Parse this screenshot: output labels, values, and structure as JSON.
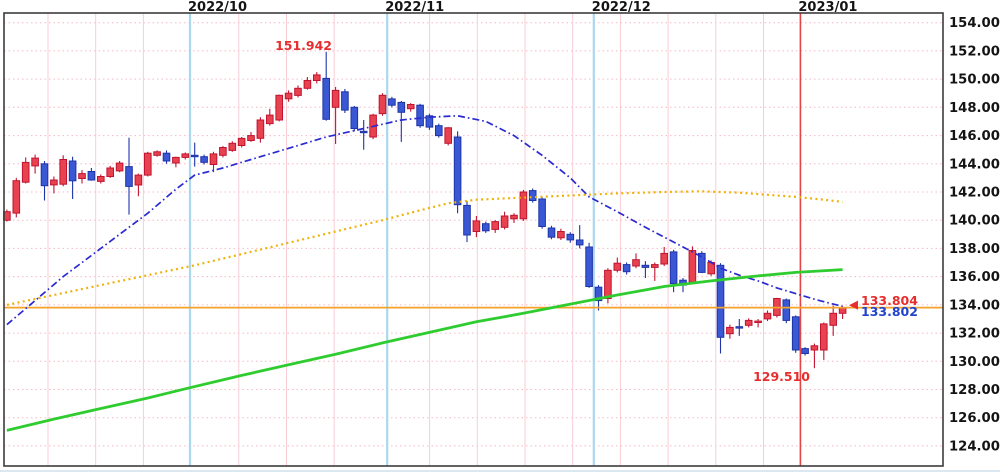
{
  "chart_data": {
    "type": "candlestick",
    "title": "",
    "y_axis": {
      "tick_labels": [
        "154.000",
        "152.000",
        "150.000",
        "148.000",
        "146.000",
        "144.000",
        "142.000",
        "140.000",
        "138.000",
        "136.000",
        "134.000",
        "132.000",
        "130.000",
        "128.000",
        "126.000",
        "124.000"
      ],
      "tick_values": [
        154,
        152,
        150,
        148,
        146,
        144,
        142,
        140,
        138,
        136,
        134,
        132,
        130,
        128,
        126,
        124
      ],
      "visible_range": [
        122.6,
        154.7
      ],
      "side": "right"
    },
    "x_axis": {
      "month_labels": [
        {
          "label": "2022/10",
          "first_candle_index": 20,
          "line_color": "lightblue"
        },
        {
          "label": "2022/11",
          "first_candle_index": 41,
          "line_color": "lightblue"
        },
        {
          "label": "2022/12",
          "first_candle_index": 63,
          "line_color": "lightblue"
        },
        {
          "label": "2023/01",
          "first_candle_index": 85,
          "line_color": "red"
        }
      ],
      "weekly_gridlines": true
    },
    "grid": {
      "horizontal": "pink dotted",
      "vertical_weekly": "pink solid",
      "vertical_monthly": "light blue",
      "current_month_line": "red"
    },
    "up_color": "#e8414f",
    "up_border": "#c01430",
    "down_color": "#3a58d4",
    "down_border": "#1e34a8",
    "candles_ohlc": [
      [
        140.0,
        140.75,
        139.9,
        140.6
      ],
      [
        140.5,
        143.0,
        140.2,
        142.8
      ],
      [
        142.7,
        144.45,
        142.6,
        144.1
      ],
      [
        143.85,
        144.65,
        143.3,
        144.4
      ],
      [
        144.0,
        144.2,
        141.4,
        142.45
      ],
      [
        142.5,
        143.1,
        141.9,
        142.85
      ],
      [
        142.55,
        144.6,
        142.4,
        144.3
      ],
      [
        144.2,
        144.5,
        141.5,
        142.8
      ],
      [
        142.95,
        143.55,
        142.6,
        143.3
      ],
      [
        143.45,
        143.7,
        142.8,
        142.85
      ],
      [
        142.75,
        143.25,
        142.6,
        143.1
      ],
      [
        143.1,
        143.85,
        143.0,
        143.7
      ],
      [
        143.5,
        144.2,
        143.4,
        144.05
      ],
      [
        143.8,
        145.85,
        140.4,
        142.4
      ],
      [
        142.5,
        143.3,
        141.7,
        143.2
      ],
      [
        143.2,
        144.85,
        143.1,
        144.75
      ],
      [
        144.6,
        144.95,
        144.5,
        144.85
      ],
      [
        144.75,
        144.95,
        144.0,
        144.2
      ],
      [
        144.05,
        144.5,
        143.75,
        144.45
      ],
      [
        144.45,
        144.8,
        144.3,
        144.7
      ],
      [
        144.6,
        145.5,
        143.8,
        144.55
      ],
      [
        144.5,
        144.65,
        143.95,
        144.1
      ],
      [
        143.95,
        144.85,
        143.4,
        144.7
      ],
      [
        144.6,
        145.25,
        144.45,
        145.15
      ],
      [
        144.95,
        145.6,
        144.85,
        145.45
      ],
      [
        145.3,
        145.9,
        145.15,
        145.8
      ],
      [
        145.65,
        146.25,
        145.55,
        146.0
      ],
      [
        145.8,
        147.3,
        145.5,
        147.1
      ],
      [
        146.85,
        147.9,
        146.7,
        147.45
      ],
      [
        147.1,
        148.9,
        147.0,
        148.85
      ],
      [
        148.6,
        149.2,
        148.4,
        149.0
      ],
      [
        148.85,
        149.55,
        148.7,
        149.35
      ],
      [
        149.35,
        150.15,
        149.25,
        149.9
      ],
      [
        149.9,
        150.5,
        149.7,
        150.3
      ],
      [
        150.05,
        151.94,
        147.05,
        147.15
      ],
      [
        148.0,
        149.45,
        145.4,
        149.2
      ],
      [
        149.1,
        149.3,
        147.6,
        147.8
      ],
      [
        148.0,
        148.1,
        146.3,
        146.5
      ],
      [
        146.3,
        147.1,
        145.0,
        146.25
      ],
      [
        145.9,
        147.55,
        145.75,
        147.45
      ],
      [
        147.55,
        149.0,
        147.4,
        148.85
      ],
      [
        148.6,
        148.75,
        148.0,
        148.15
      ],
      [
        148.35,
        148.45,
        145.55,
        147.65
      ],
      [
        147.9,
        148.3,
        147.7,
        148.2
      ],
      [
        148.15,
        148.25,
        146.55,
        146.7
      ],
      [
        147.4,
        147.55,
        146.4,
        146.6
      ],
      [
        146.7,
        146.85,
        145.85,
        146.0
      ],
      [
        145.45,
        146.6,
        145.3,
        146.55
      ],
      [
        145.9,
        146.3,
        140.5,
        141.1
      ],
      [
        141.05,
        141.35,
        138.45,
        138.95
      ],
      [
        139.2,
        140.3,
        138.8,
        139.95
      ],
      [
        139.75,
        139.9,
        139.1,
        139.25
      ],
      [
        139.35,
        140.0,
        139.1,
        139.9
      ],
      [
        139.5,
        140.6,
        139.35,
        140.3
      ],
      [
        140.1,
        140.5,
        139.8,
        140.35
      ],
      [
        140.1,
        142.15,
        139.95,
        142.0
      ],
      [
        142.1,
        142.25,
        141.25,
        141.4
      ],
      [
        141.5,
        141.65,
        139.4,
        139.55
      ],
      [
        139.45,
        139.6,
        138.65,
        138.8
      ],
      [
        138.75,
        139.4,
        138.6,
        139.2
      ],
      [
        139.0,
        139.15,
        138.4,
        138.6
      ],
      [
        138.6,
        139.65,
        138.0,
        138.25
      ],
      [
        138.1,
        138.4,
        135.2,
        135.3
      ],
      [
        135.25,
        135.4,
        133.6,
        134.3
      ],
      [
        134.45,
        136.6,
        134.1,
        136.45
      ],
      [
        136.45,
        137.35,
        136.3,
        136.95
      ],
      [
        136.85,
        137.0,
        136.15,
        136.35
      ],
      [
        136.75,
        137.65,
        136.6,
        137.2
      ],
      [
        136.8,
        137.1,
        135.9,
        136.65
      ],
      [
        136.65,
        137.0,
        135.7,
        136.85
      ],
      [
        136.9,
        138.1,
        136.75,
        137.65
      ],
      [
        137.75,
        137.9,
        134.9,
        135.5
      ],
      [
        135.75,
        135.9,
        134.9,
        135.4
      ],
      [
        135.6,
        138.15,
        135.45,
        137.85
      ],
      [
        137.65,
        137.8,
        136.25,
        136.3
      ],
      [
        136.2,
        137.15,
        136.05,
        137.0
      ],
      [
        136.8,
        136.95,
        130.55,
        131.7
      ],
      [
        131.95,
        132.6,
        131.6,
        132.4
      ],
      [
        132.45,
        133.0,
        131.8,
        132.4
      ],
      [
        132.55,
        133.05,
        132.4,
        132.9
      ],
      [
        132.8,
        133.0,
        132.4,
        132.85
      ],
      [
        133.0,
        133.6,
        132.85,
        133.4
      ],
      [
        133.25,
        134.5,
        133.1,
        134.45
      ],
      [
        134.35,
        134.45,
        132.7,
        132.9
      ],
      [
        133.15,
        133.25,
        130.6,
        130.8
      ],
      [
        130.9,
        131.0,
        130.4,
        130.55
      ],
      [
        130.8,
        131.25,
        129.51,
        131.1
      ],
      [
        130.8,
        132.75,
        130.1,
        132.65
      ],
      [
        132.55,
        133.95,
        131.8,
        133.4
      ],
      [
        133.4,
        133.9,
        133.0,
        133.8
      ]
    ],
    "moving_averages": [
      {
        "name": "ma-fast-blue",
        "style": "dash-dot",
        "color": "#2a2ad0",
        "width": 1.7,
        "points": [
          [
            0,
            132.6
          ],
          [
            3,
            134.3
          ],
          [
            6,
            136.0
          ],
          [
            9,
            137.5
          ],
          [
            12,
            139.0
          ],
          [
            15,
            140.5
          ],
          [
            18,
            142.2
          ],
          [
            20,
            143.2
          ],
          [
            23,
            143.7
          ],
          [
            26,
            144.3
          ],
          [
            30,
            145.1
          ],
          [
            34,
            145.9
          ],
          [
            38,
            146.5
          ],
          [
            42,
            147.1
          ],
          [
            45,
            147.3
          ],
          [
            48,
            147.4
          ],
          [
            51,
            147.0
          ],
          [
            54,
            146.0
          ],
          [
            57,
            144.6
          ],
          [
            60,
            143.0
          ],
          [
            62,
            141.65
          ],
          [
            65,
            140.6
          ],
          [
            68,
            139.5
          ],
          [
            70,
            138.8
          ],
          [
            72,
            138.1
          ],
          [
            74,
            137.4
          ],
          [
            76,
            136.6
          ],
          [
            78,
            136.1
          ],
          [
            80,
            135.7
          ],
          [
            82,
            135.2
          ],
          [
            84,
            134.8
          ],
          [
            86,
            134.4
          ],
          [
            88,
            134.05
          ],
          [
            89,
            133.9
          ]
        ]
      },
      {
        "name": "ma-mid-orange",
        "style": "dotted",
        "color": "#efb20a",
        "width": 2.2,
        "points": [
          [
            0,
            134.0
          ],
          [
            5,
            134.7
          ],
          [
            10,
            135.4
          ],
          [
            15,
            136.1
          ],
          [
            20,
            136.8
          ],
          [
            25,
            137.6
          ],
          [
            30,
            138.4
          ],
          [
            35,
            139.2
          ],
          [
            40,
            140.0
          ],
          [
            44,
            140.7
          ],
          [
            47,
            141.2
          ],
          [
            50,
            141.45
          ],
          [
            55,
            141.6
          ],
          [
            60,
            141.75
          ],
          [
            65,
            141.9
          ],
          [
            70,
            142.0
          ],
          [
            74,
            142.05
          ],
          [
            78,
            141.95
          ],
          [
            81,
            141.8
          ],
          [
            84,
            141.65
          ],
          [
            87,
            141.45
          ],
          [
            89,
            141.3
          ]
        ]
      },
      {
        "name": "ma-slow-green",
        "style": "solid",
        "color": "#2fcc2f",
        "width": 2.8,
        "points": [
          [
            0,
            125.1
          ],
          [
            5,
            125.9
          ],
          [
            10,
            126.65
          ],
          [
            15,
            127.4
          ],
          [
            19,
            128.05
          ],
          [
            25,
            129.0
          ],
          [
            30,
            129.75
          ],
          [
            35,
            130.5
          ],
          [
            40,
            131.3
          ],
          [
            45,
            132.05
          ],
          [
            50,
            132.8
          ],
          [
            55,
            133.4
          ],
          [
            60,
            134.05
          ],
          [
            65,
            134.7
          ],
          [
            70,
            135.3
          ],
          [
            75,
            135.7
          ],
          [
            80,
            136.05
          ],
          [
            84,
            136.3
          ],
          [
            89,
            136.5
          ]
        ]
      }
    ],
    "horizontal_price_line": {
      "value": 133.804,
      "color": "#f5a229"
    },
    "annotations": {
      "high_label": "151.942",
      "high_candle_index": 34,
      "low_label": "129.510",
      "low_candle_index": 86,
      "current_price_label": "133.804",
      "current_price_color": "#e62e2e",
      "current_ma_label": "133.802",
      "current_ma_color": "#2244cc",
      "marker": "left-triangle"
    }
  }
}
